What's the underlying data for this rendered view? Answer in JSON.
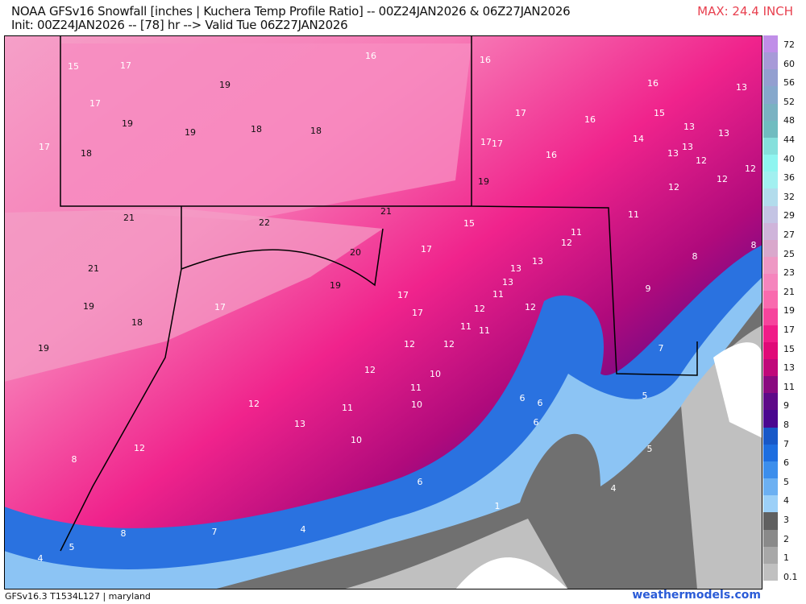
{
  "header": {
    "title": "NOAA GFSv16 Snowfall [inches | Kuchera Temp Profile Ratio] -- 00Z24JAN2026 & 06Z27JAN2026",
    "subtitle": "Init: 00Z24JAN2026 -- [78] hr --> Valid Tue 06Z27JAN2026",
    "max": "MAX: 24.4 INCH"
  },
  "colorbar": {
    "labels": [
      "72",
      "60",
      "56",
      "52",
      "48",
      "44",
      "40",
      "36",
      "32",
      "29",
      "27",
      "25",
      "23",
      "21",
      "19",
      "17",
      "15",
      "13",
      "11",
      "9",
      "8",
      "7",
      "6",
      "5",
      "4",
      "3",
      "2",
      "1",
      "0.1"
    ],
    "colors": [
      "#c08ee8",
      "#a79ad8",
      "#939fd0",
      "#86a8cc",
      "#7ab2c2",
      "#70bcc0",
      "#86e0dc",
      "#8ff5f0",
      "#a2f0f0",
      "#b2dcec",
      "#c4c4e4",
      "#cfb4da",
      "#d9a8cc",
      "#ee98c4",
      "#f585bd",
      "#f96aae",
      "#f6449c",
      "#f01c88",
      "#e00a78",
      "#c0087a",
      "#8a0a80",
      "#5e0a88",
      "#4a0690",
      "#1858c8",
      "#1e6ee0",
      "#3c8eec",
      "#6cb0f2",
      "#9cd0f8",
      "#606060",
      "#8a8a8a",
      "#a8a8a8",
      "#c0c0c0"
    ]
  },
  "map_labels": [
    "15",
    "17",
    "19",
    "16",
    "16",
    "17",
    "19",
    "19",
    "18",
    "18",
    "17",
    "18",
    "17",
    "16",
    "16",
    "13",
    "15",
    "13",
    "13",
    "14",
    "13",
    "13",
    "12",
    "12",
    "12",
    "12",
    "17",
    "17",
    "16",
    "19",
    "21",
    "22",
    "21",
    "15",
    "11",
    "12",
    "11",
    "8",
    "8",
    "21",
    "20",
    "17",
    "13",
    "13",
    "13",
    "19",
    "19",
    "17",
    "17",
    "17",
    "11",
    "12",
    "12",
    "9",
    "11",
    "11",
    "18",
    "19",
    "12",
    "12",
    "7",
    "12",
    "10",
    "11",
    "5",
    "6",
    "6",
    "11",
    "10",
    "6",
    "12",
    "13",
    "10",
    "12",
    "5",
    "8",
    "6",
    "4",
    "1",
    "4",
    "7",
    "8",
    "5",
    "4"
  ],
  "footer": {
    "model": "GFSv16.3 T1534L127 | maryland",
    "site": "weathermodels.com"
  }
}
